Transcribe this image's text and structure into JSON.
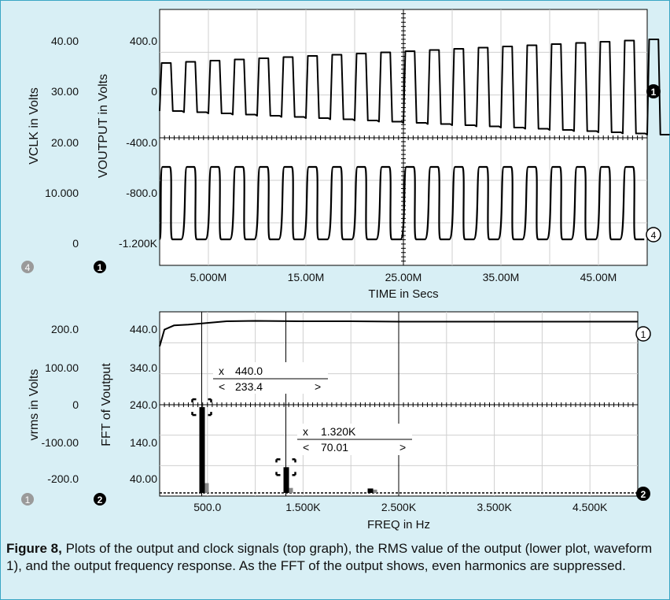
{
  "caption": {
    "figure": "Figure 8,",
    "text": " Plots of the output and clock signals (top graph), the RMS value of the output (lower plot, waveform 1), and the output frequency response. As the FFT of the output shows, even harmonics are suppressed."
  },
  "colors": {
    "background": "#d8eff5",
    "plot_bg": "#ffffff",
    "grid": "#cfcfcf",
    "trace": "#000000",
    "fft_gray": "#888888",
    "border": "#3aa6c4"
  },
  "chart_data": [
    {
      "type": "line",
      "xlabel": "TIME in Secs",
      "x_ticks": [
        "5.000M",
        "15.00M",
        "25.00M",
        "35.00M",
        "45.00M"
      ],
      "x_tick_values": [
        5,
        15,
        25,
        35,
        45
      ],
      "xlim": [
        0,
        50
      ],
      "x_unit": "M",
      "grid": true,
      "cursor_x": 25,
      "axes": [
        {
          "label": "VCLK in Volts",
          "ticks": [
            "40.00",
            "30.00",
            "20.00",
            "10.000",
            "0"
          ],
          "ylim": [
            0,
            40
          ],
          "marker": "4"
        },
        {
          "label": "VOUTPUT in Volts",
          "ticks": [
            "400.0",
            "0",
            "-400.0",
            "-800.0",
            "-1.200K"
          ],
          "ylim": [
            -1200,
            400
          ],
          "marker": "1"
        }
      ],
      "series": [
        {
          "marker": "1",
          "panel": "upper",
          "description_values": {
            "period_M": 2.5,
            "start_amplitude": 230,
            "end_amplitude": 380,
            "offset_low": -200
          }
        },
        {
          "marker": "4",
          "panel": "lower",
          "description_values": {
            "period_M": 2.5,
            "high": 0.85,
            "low": 0.15
          }
        }
      ]
    },
    {
      "type": "line",
      "xlabel": "FREQ in Hz",
      "x_ticks": [
        "500.0",
        "1.500K",
        "2.500K",
        "3.500K",
        "4.500K"
      ],
      "x_tick_values": [
        500,
        1500,
        2500,
        3500,
        4500
      ],
      "xlim": [
        0,
        5000
      ],
      "grid": true,
      "axes": [
        {
          "label": "vrms in Volts",
          "ticks": [
            "200.0",
            "100.00",
            "0",
            "-100.00",
            "-200.0"
          ],
          "ylim": [
            -200,
            200
          ],
          "marker": "1"
        },
        {
          "label": "FFT of Voutput",
          "ticks": [
            "440.0",
            "340.0",
            "240.0",
            "140.0",
            "40.00"
          ],
          "ylim": [
            40,
            440
          ],
          "marker": "2"
        }
      ],
      "series": [
        {
          "marker": "1",
          "name": "",
          "x": [
            0,
            50,
            150,
            300,
            500,
            700,
            1000,
            1500,
            2000,
            2500,
            3000,
            4000,
            5000
          ],
          "y": [
            380,
            420,
            430,
            432,
            436,
            440,
            441,
            440,
            440,
            439,
            439,
            439,
            439
          ]
        },
        {
          "marker": "2",
          "name": "",
          "peaks": [
            {
              "x": 440,
              "y": 233.4
            },
            {
              "x": 1320,
              "y": 70.01
            },
            {
              "x": 2200,
              "y": 12
            }
          ]
        }
      ],
      "cursors": [
        {
          "x_label": "x",
          "x_value": "440.0",
          "y_label": "<",
          "y_value": "233.4",
          "arrow": ">"
        },
        {
          "x_label": "x",
          "x_value": "1.320K",
          "y_label": "<",
          "y_value": "70.01",
          "arrow": ">"
        }
      ]
    }
  ],
  "panel_markers": {
    "top_left_gray": "4",
    "top_left_black": "1",
    "top_right_1": "1",
    "top_right_2": "4",
    "bottom_left_gray": "1",
    "bottom_left_black": "2",
    "bottom_right_1": "1",
    "bottom_right_2": "2"
  }
}
